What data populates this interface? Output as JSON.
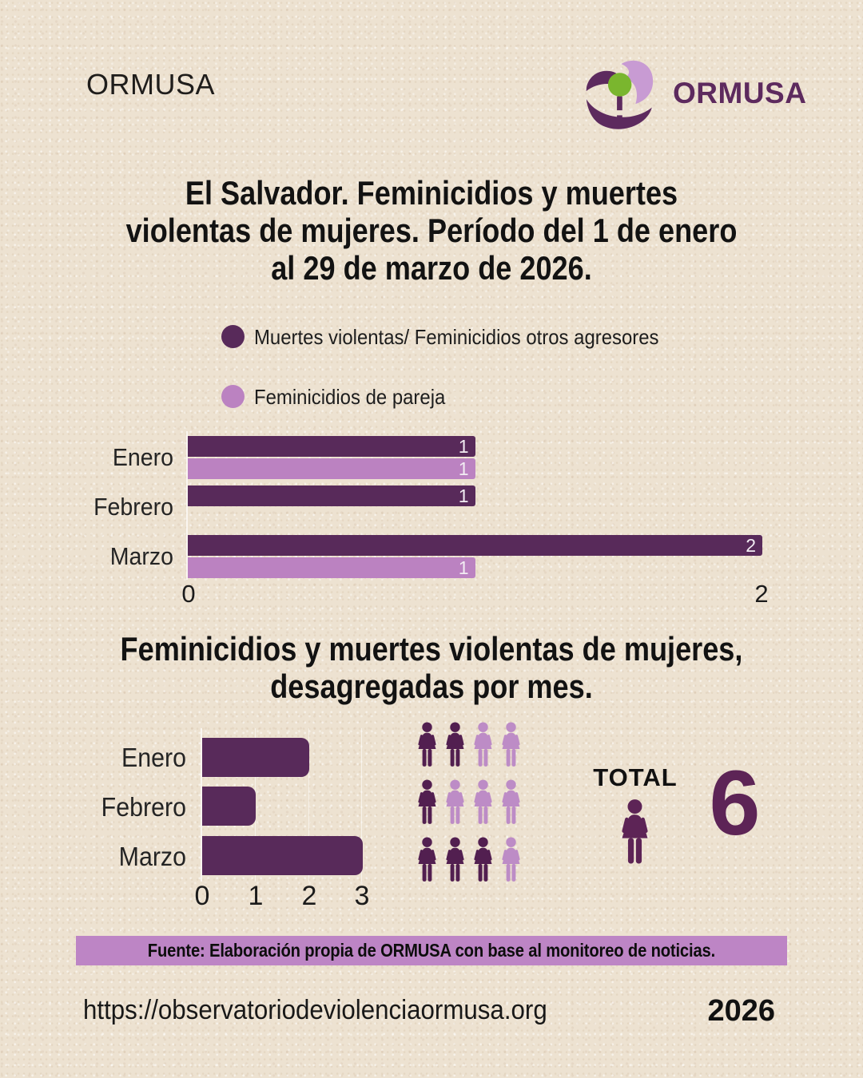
{
  "header": {
    "brand": "ORMUSA",
    "logo_wordmark": "ORMUSA",
    "logo_colors": {
      "petal": "#c89bd3",
      "dark": "#5d2a5e",
      "green": "#7ab62e"
    }
  },
  "title": {
    "lines": [
      "El Salvador. Feminicidios y muertes",
      "violentas de mujeres. Período del 1 de enero",
      "al 29 de marzo de 2026."
    ]
  },
  "chart_data": [
    {
      "type": "bar",
      "orientation": "horizontal",
      "categories": [
        "Enero",
        "Febrero",
        "Marzo"
      ],
      "series": [
        {
          "name": "Muertes violentas/ Feminicidios otros agresores",
          "color": "#582a5a",
          "values": [
            1,
            1,
            2
          ]
        },
        {
          "name": "Feminicidios de pareja",
          "color": "#bb82c1",
          "values": [
            1,
            0,
            1
          ]
        }
      ],
      "xlim": [
        0,
        2
      ],
      "xticks": [
        0,
        2
      ],
      "value_labels": true,
      "legend_position": "top"
    },
    {
      "type": "bar",
      "orientation": "horizontal",
      "title_lines": [
        "Feminicidios y muertes violentas de mujeres,",
        "desagregadas por mes."
      ],
      "categories": [
        "Enero",
        "Febrero",
        "Marzo"
      ],
      "values": [
        2,
        1,
        3
      ],
      "color": "#582a5a",
      "xlim": [
        0,
        3
      ],
      "xticks": [
        0,
        1,
        2,
        3
      ],
      "grid": "faint vertical lines at each tick"
    },
    {
      "type": "pictogram",
      "unit": "woman-icon",
      "rows": [
        {
          "category": "Enero",
          "filled": 2,
          "total": 4
        },
        {
          "category": "Febrero",
          "filled": 1,
          "total": 4
        },
        {
          "category": "Marzo",
          "filled": 3,
          "total": 4
        }
      ],
      "filled_color": "#521f50",
      "empty_color": "#bd8cc6",
      "total": 6
    }
  ],
  "summary": {
    "total_label": "TOTAL"
  },
  "source": {
    "text": "Fuente: Elaboración propia de ORMUSA con base al monitoreo de noticias.",
    "band_color": "#bd85c5"
  },
  "footer": {
    "url": "https://observatoriodeviolenciaormusa.org",
    "year": "2026"
  }
}
